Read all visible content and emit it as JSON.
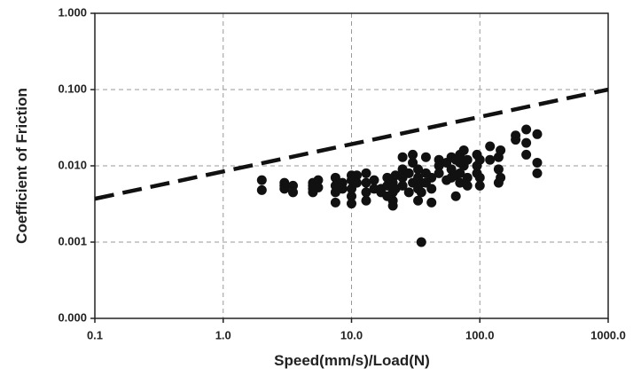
{
  "chart_data": {
    "type": "scatter",
    "xlabel": "Speed(mm/s)/Load(N)",
    "ylabel": "Coefficient of Friction",
    "xlog": true,
    "ylog": true,
    "grid": true,
    "xlim": [
      0.1,
      1000
    ],
    "ylim": [
      0.0001,
      1
    ],
    "xticks": [
      0.1,
      {
        "value": 1,
        "label": "1.0"
      },
      {
        "value": 10,
        "label": "10.0"
      },
      {
        "value": 100,
        "label": "100.0"
      },
      {
        "value": 1000,
        "label": "1000.0"
      }
    ],
    "yticks": [
      {
        "value": 1,
        "label": "1.000"
      },
      {
        "value": 0.1,
        "label": "0.100"
      },
      {
        "value": 0.01,
        "label": "0.010"
      },
      {
        "value": 0.001,
        "label": "0.001"
      },
      {
        "value": 0.0001,
        "label": "0.000"
      }
    ],
    "series": [
      {
        "type": "scatter",
        "color": "#111111",
        "x": [
          2,
          2,
          3,
          3,
          3,
          3.5,
          3.5,
          5,
          5,
          5,
          5,
          5.5,
          5.5,
          7.5,
          7.5,
          7.5,
          7.5,
          8.5,
          8.5,
          10,
          10,
          10,
          10,
          10,
          11,
          11,
          13,
          13,
          13,
          13,
          15,
          15,
          17,
          17,
          19,
          19,
          19,
          21,
          21,
          21,
          21,
          22,
          22,
          25,
          25,
          25,
          25,
          28,
          28,
          30,
          30,
          30,
          33,
          33,
          33,
          33,
          35,
          35,
          35,
          38,
          38,
          38,
          42,
          42,
          42,
          48,
          48,
          48,
          55,
          55,
          60,
          60,
          60,
          65,
          65,
          65,
          70,
          70,
          70,
          70,
          75,
          75,
          80,
          80,
          80,
          95,
          95,
          95,
          100,
          100,
          100,
          120,
          120,
          140,
          140,
          140,
          145,
          145,
          190,
          190,
          230,
          230,
          230,
          280,
          280,
          280
        ],
        "values": [
          0.0065,
          0.0048,
          0.006,
          0.0055,
          0.005,
          0.0055,
          0.0045,
          0.006,
          0.005,
          0.0045,
          0.0055,
          0.0065,
          0.0052,
          0.007,
          0.0055,
          0.0045,
          0.0033,
          0.006,
          0.005,
          0.0075,
          0.0065,
          0.005,
          0.004,
          0.0032,
          0.0075,
          0.006,
          0.008,
          0.006,
          0.0045,
          0.0035,
          0.0065,
          0.005,
          0.005,
          0.0045,
          0.007,
          0.0055,
          0.004,
          0.006,
          0.0045,
          0.0035,
          0.003,
          0.0075,
          0.005,
          0.013,
          0.009,
          0.007,
          0.0055,
          0.008,
          0.0045,
          0.014,
          0.011,
          0.006,
          0.009,
          0.007,
          0.005,
          0.0035,
          0.001,
          0.006,
          0.0045,
          0.013,
          0.008,
          0.006,
          0.007,
          0.0033,
          0.005,
          0.012,
          0.01,
          0.008,
          0.011,
          0.0065,
          0.013,
          0.009,
          0.007,
          0.012,
          0.004,
          0.0075,
          0.014,
          0.011,
          0.008,
          0.006,
          0.016,
          0.01,
          0.012,
          0.007,
          0.0055,
          0.014,
          0.01,
          0.008,
          0.012,
          0.007,
          0.0055,
          0.018,
          0.012,
          0.013,
          0.009,
          0.006,
          0.016,
          0.007,
          0.022,
          0.025,
          0.03,
          0.02,
          0.014,
          0.026,
          0.011,
          0.008
        ]
      },
      {
        "type": "line",
        "style": "dashed",
        "color": "#111111",
        "x": [
          0.1,
          1000
        ],
        "values": [
          0.0037,
          0.1
        ]
      }
    ]
  }
}
